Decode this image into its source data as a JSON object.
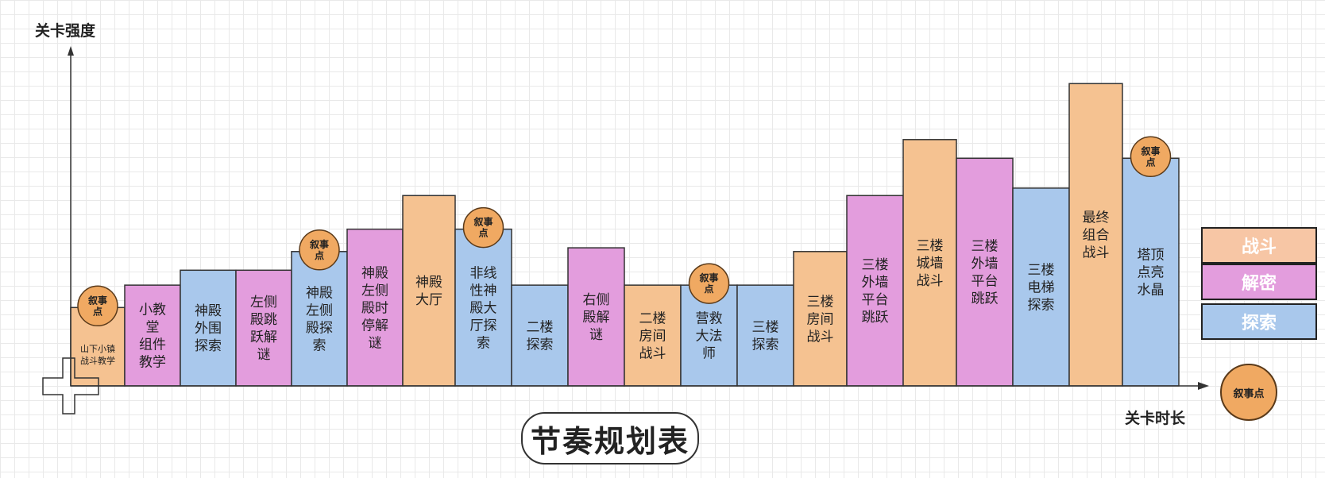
{
  "title": "节奏规划表",
  "colors": {
    "战斗": "#f5c291",
    "解密": "#e39ddd",
    "探索": "#a9c8ec",
    "narrative": "#f0a962",
    "legend_战斗": "#f7c6a5"
  },
  "legend": [
    {
      "label": "战斗",
      "color_key": "legend_战斗"
    },
    {
      "label": "解密",
      "color_key": "解密"
    },
    {
      "label": "探索",
      "color_key": "探索"
    }
  ],
  "legend_narrative": "叙事点",
  "chart_data": {
    "type": "bar",
    "ylabel": "关卡强度",
    "xlabel": "关卡时长",
    "bars": [
      {
        "label": "山下小镇\n战斗教学",
        "category": "战斗",
        "value": 2.1,
        "narrative": true
      },
      {
        "label": "小教\n堂\n组件\n教学",
        "category": "解密",
        "value": 2.7,
        "narrative": false
      },
      {
        "label": "神殿\n外围\n探索",
        "category": "探索",
        "value": 3.1,
        "narrative": false
      },
      {
        "label": "左侧\n殿跳\n跃解\n谜",
        "category": "解密",
        "value": 3.1,
        "narrative": false
      },
      {
        "label": "神殿\n左侧\n殿探\n索",
        "category": "探索",
        "value": 3.6,
        "narrative": true
      },
      {
        "label": "神殿\n左侧\n殿时\n停解\n谜",
        "category": "解密",
        "value": 4.2,
        "narrative": false
      },
      {
        "label": "神殿\n大厅",
        "category": "战斗",
        "value": 5.1,
        "narrative": false
      },
      {
        "label": "非线\n性神\n殿大\n厅探\n索",
        "category": "探索",
        "value": 4.2,
        "narrative": true
      },
      {
        "label": "二楼\n探索",
        "category": "探索",
        "value": 2.7,
        "narrative": false
      },
      {
        "label": "右侧\n殿解\n谜",
        "category": "解密",
        "value": 3.7,
        "narrative": false
      },
      {
        "label": "二楼\n房间\n战斗",
        "category": "战斗",
        "value": 2.7,
        "narrative": false
      },
      {
        "label": "营救\n大法\n师",
        "category": "探索",
        "value": 2.7,
        "narrative": true
      },
      {
        "label": "三楼\n探索",
        "category": "探索",
        "value": 2.7,
        "narrative": false
      },
      {
        "label": "三楼\n房间\n战斗",
        "category": "战斗",
        "value": 3.6,
        "narrative": false
      },
      {
        "label": "三楼\n外墙\n平台\n跳跃",
        "category": "解密",
        "value": 5.1,
        "narrative": false
      },
      {
        "label": "三楼\n城墙\n战斗",
        "category": "战斗",
        "value": 6.6,
        "narrative": false
      },
      {
        "label": "三楼\n外墙\n平台\n跳跃",
        "category": "解密",
        "value": 6.1,
        "narrative": false
      },
      {
        "label": "三楼\n电梯\n探索",
        "category": "探索",
        "value": 5.3,
        "narrative": false
      },
      {
        "label": "最终\n组合\n战斗",
        "category": "战斗",
        "value": 8.1,
        "narrative": false
      },
      {
        "label": "塔顶\n点亮\n水晶",
        "category": "探索",
        "value": 6.1,
        "narrative": true
      }
    ],
    "narrative_label": "叙事\n点",
    "ylim": [
      0,
      10
    ]
  }
}
